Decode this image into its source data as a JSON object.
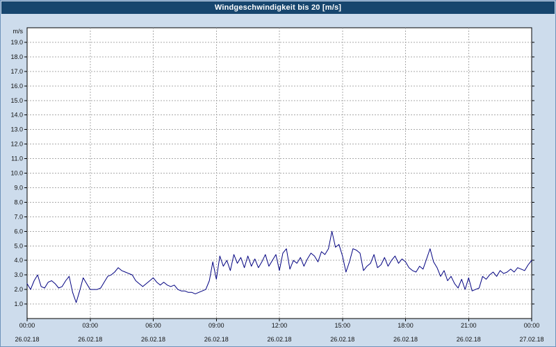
{
  "colors": {
    "background": "#cddcec",
    "titlebar": "#17466e",
    "plot_bg": "#ffffff",
    "grid": "#a9a9a9",
    "axis": "#000000",
    "text": "#111111",
    "series": "#000080"
  },
  "chart_data": {
    "type": "line",
    "title": "Windgeschwindigkeit bis 20 [m/s]",
    "ylabel": "m/s",
    "ylim": [
      0,
      20
    ],
    "ytick_labels": [
      "1.0",
      "2.0",
      "3.0",
      "4.0",
      "5.0",
      "6.0",
      "7.0",
      "8.0",
      "9.0",
      "10.0",
      "11.0",
      "12.0",
      "13.0",
      "14.0",
      "15.0",
      "16.0",
      "17.0",
      "18.0",
      "19.0"
    ],
    "xlim": [
      0,
      1440
    ],
    "xticks": [
      {
        "minute": 0,
        "time": "00:00",
        "date": "26.02.18"
      },
      {
        "minute": 180,
        "time": "03:00",
        "date": "26.02.18"
      },
      {
        "minute": 360,
        "time": "06:00",
        "date": "26.02.18"
      },
      {
        "minute": 540,
        "time": "09:00",
        "date": "26.02.18"
      },
      {
        "minute": 720,
        "time": "12:00",
        "date": "26.02.18"
      },
      {
        "minute": 900,
        "time": "15:00",
        "date": "26.02.18"
      },
      {
        "minute": 1080,
        "time": "18:00",
        "date": "26.02.18"
      },
      {
        "minute": 1260,
        "time": "21:00",
        "date": "26.02.18"
      },
      {
        "minute": 1440,
        "time": "00:00",
        "date": "27.02.18"
      }
    ],
    "grid": "dashed",
    "legend": "none",
    "series": [
      {
        "name": "Windgeschwindigkeit",
        "color": "#000080",
        "x_step_minutes": 10,
        "values": [
          2.4,
          2.0,
          2.6,
          3.0,
          2.2,
          2.1,
          2.5,
          2.6,
          2.4,
          2.1,
          2.2,
          2.6,
          2.9,
          1.8,
          1.1,
          1.9,
          2.8,
          2.4,
          2.0,
          2.0,
          2.0,
          2.1,
          2.5,
          2.9,
          3.0,
          3.2,
          3.5,
          3.3,
          3.2,
          3.1,
          3.0,
          2.6,
          2.4,
          2.2,
          2.4,
          2.6,
          2.8,
          2.5,
          2.3,
          2.5,
          2.3,
          2.2,
          2.3,
          2.0,
          1.9,
          1.9,
          1.8,
          1.8,
          1.7,
          1.8,
          1.9,
          2.0,
          2.6,
          3.9,
          2.7,
          4.3,
          3.6,
          4.0,
          3.3,
          4.4,
          3.8,
          4.2,
          3.5,
          4.3,
          3.6,
          4.1,
          3.5,
          3.9,
          4.4,
          3.6,
          4.0,
          4.4,
          3.3,
          4.5,
          4.8,
          3.4,
          4.0,
          3.8,
          4.2,
          3.6,
          4.1,
          4.5,
          4.3,
          3.9,
          4.6,
          4.4,
          4.8,
          6.0,
          4.9,
          5.1,
          4.3,
          3.2,
          3.9,
          4.8,
          4.7,
          4.5,
          3.3,
          3.6,
          3.8,
          4.4,
          3.5,
          3.7,
          4.2,
          3.6,
          4.0,
          4.3,
          3.8,
          4.1,
          3.9,
          3.5,
          3.3,
          3.2,
          3.6,
          3.4,
          4.1,
          4.8,
          3.9,
          3.5,
          2.9,
          3.3,
          2.6,
          2.9,
          2.4,
          2.1,
          2.7,
          2.0,
          2.8,
          1.9,
          2.0,
          2.1,
          2.9,
          2.7,
          3.0,
          3.2,
          2.9,
          3.3,
          3.1,
          3.2,
          3.4,
          3.2,
          3.5,
          3.4,
          3.3,
          3.7,
          4.0
        ]
      }
    ]
  }
}
